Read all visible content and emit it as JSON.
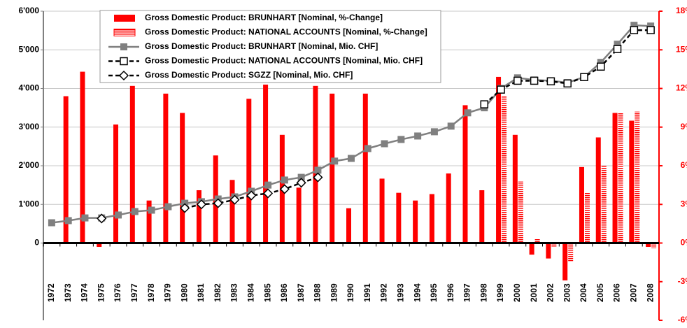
{
  "chart_data": {
    "type": "combo",
    "categories": [
      "1972",
      "1973",
      "1974",
      "1975",
      "1976",
      "1977",
      "1978",
      "1979",
      "1980",
      "1981",
      "1982",
      "1983",
      "1984",
      "1985",
      "1986",
      "1987",
      "1988",
      "1989",
      "1990",
      "1991",
      "1992",
      "1993",
      "1994",
      "1995",
      "1996",
      "1997",
      "1998",
      "1999",
      "2000",
      "2001",
      "2002",
      "2003",
      "2004",
      "2005",
      "2006",
      "2007",
      "2008"
    ],
    "series": [
      {
        "name": "Gross Domestic Product: BRUNHART [Nominal, %-Change]",
        "type": "bar",
        "axis": "y2",
        "color": "#ff0000",
        "pattern": "solid",
        "values": [
          null,
          11.4,
          13.3,
          -0.3,
          9.2,
          12.2,
          3.3,
          11.6,
          10.1,
          4.1,
          6.8,
          4.9,
          11.2,
          12.3,
          8.4,
          4.3,
          12.2,
          11.6,
          2.7,
          11.6,
          5.0,
          3.9,
          3.3,
          3.8,
          5.4,
          10.7,
          4.1,
          12.9,
          8.4,
          -0.9,
          -1.2,
          -2.9,
          5.9,
          8.2,
          10.1,
          9.5,
          -0.3
        ]
      },
      {
        "name": "Gross Domestic Product: NATIONAL ACCOUNTS [Nominal, %-Change]",
        "type": "bar",
        "axis": "y2",
        "color": "#ff0000",
        "pattern": "hatched",
        "values": [
          null,
          null,
          null,
          null,
          null,
          null,
          null,
          null,
          null,
          null,
          null,
          null,
          null,
          null,
          null,
          null,
          null,
          null,
          null,
          null,
          null,
          null,
          null,
          null,
          null,
          null,
          null,
          11.4,
          4.8,
          0.3,
          -0.3,
          -1.4,
          3.9,
          6.0,
          10.1,
          10.2,
          -0.4
        ]
      },
      {
        "name": "Gross Domestic Product: BRUNHART [Nominal, Mio. CHF]",
        "type": "line",
        "color": "#808080",
        "dash": "solid",
        "marker": "filled-square",
        "values": [
          525,
          580,
          650,
          650,
          725,
          815,
          850,
          940,
          1030,
          1070,
          1140,
          1195,
          1340,
          1500,
          1630,
          1700,
          1885,
          2120,
          2190,
          2445,
          2570,
          2680,
          2770,
          2880,
          3025,
          3370,
          3500,
          4000,
          4275,
          4220,
          4200,
          4150,
          4295,
          4675,
          5145,
          5635,
          5615
        ]
      },
      {
        "name": "Gross Domestic Product: NATIONAL ACCOUNTS [Nominal, Mio. CHF]",
        "type": "line",
        "color": "#000000",
        "dash": "dashed",
        "marker": "open-square",
        "values": [
          null,
          null,
          null,
          null,
          null,
          null,
          null,
          null,
          null,
          null,
          null,
          null,
          null,
          null,
          null,
          null,
          null,
          null,
          null,
          null,
          null,
          null,
          null,
          null,
          null,
          null,
          3590,
          3970,
          4200,
          4200,
          4185,
          4130,
          4295,
          4565,
          5020,
          5510,
          5510
        ]
      },
      {
        "name": "Gross Domestic Product: SGZZ [Nominal, Mio. CHF]",
        "type": "line",
        "color": "#000000",
        "dash": "dashed",
        "marker": "open-diamond",
        "values": [
          null,
          null,
          null,
          635,
          null,
          null,
          null,
          null,
          905,
          1000,
          1030,
          1120,
          1230,
          1285,
          1395,
          1560,
          1700,
          null,
          null,
          null,
          null,
          null,
          null,
          null,
          null,
          null,
          null,
          null,
          null,
          null,
          null,
          null,
          null,
          null,
          null,
          null,
          null
        ]
      }
    ],
    "ylim": [
      -2000,
      6000
    ],
    "yticks": [
      0,
      {
        "value": 1000,
        "label": "1'000"
      },
      {
        "value": 2000,
        "label": "2'000"
      },
      {
        "value": 3000,
        "label": "3'000"
      },
      {
        "value": 4000,
        "label": "4'000"
      },
      {
        "value": 5000,
        "label": "5'000"
      },
      {
        "value": 6000,
        "label": "6'000"
      }
    ],
    "y2lim": [
      -6,
      18
    ],
    "y2ticks": [
      {
        "value": -6,
        "label": "-6%"
      },
      {
        "value": -3,
        "label": "-3%"
      },
      {
        "value": 0,
        "label": "0%"
      },
      {
        "value": 3,
        "label": "3%"
      },
      {
        "value": 6,
        "label": "6%"
      },
      {
        "value": 9,
        "label": "9%"
      },
      {
        "value": 12,
        "label": "12%"
      },
      {
        "value": 15,
        "label": "15%"
      },
      {
        "value": 18,
        "label": "18%"
      }
    ],
    "y2color": "#ff0000",
    "grid": true,
    "legend": "top-left"
  }
}
